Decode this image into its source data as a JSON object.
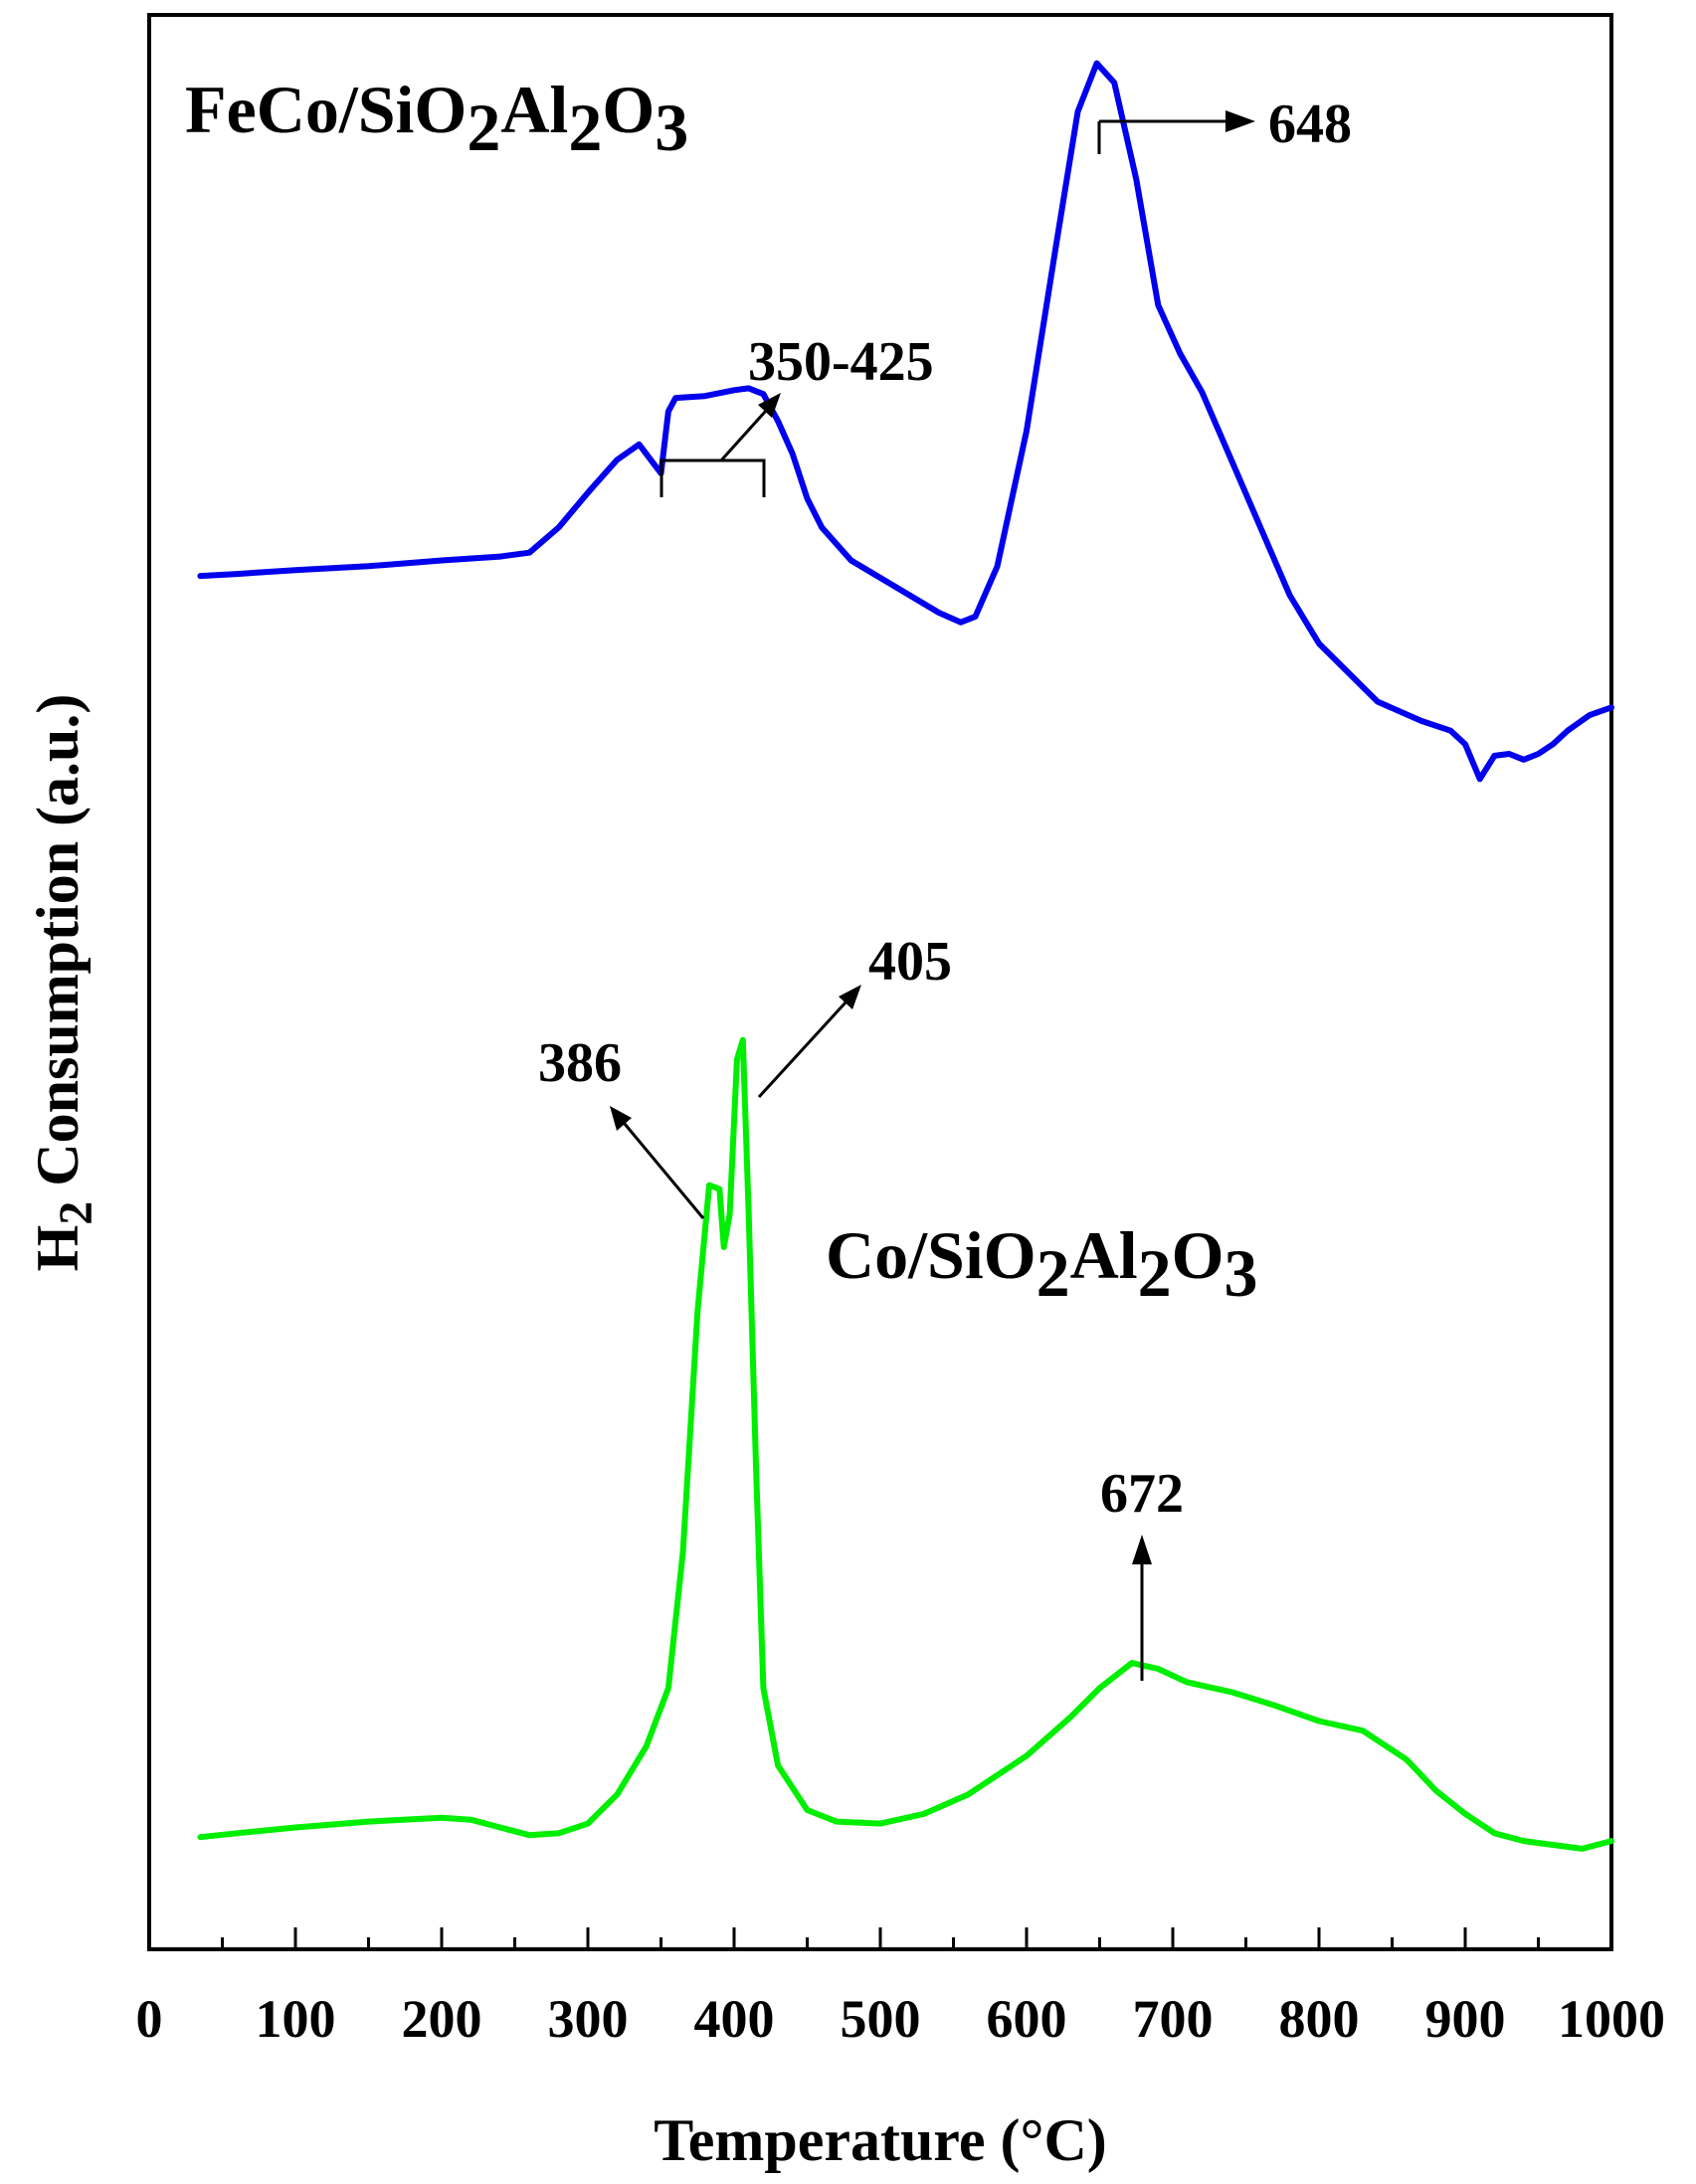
{
  "chart_data": {
    "type": "line",
    "xlabel": "Temperature (°C)",
    "ylabel_main": "H",
    "ylabel_sub": "2",
    "ylabel_rest": " Consumption (a.u.)",
    "xlim": [
      0,
      1000
    ],
    "ylim": [
      0,
      100
    ],
    "y_ticks_shown": false,
    "x_ticks": [
      0,
      100,
      200,
      300,
      400,
      500,
      600,
      700,
      800,
      900,
      1000
    ],
    "x_tick_labels": [
      "0",
      "100",
      "200",
      "300",
      "400",
      "500",
      "600",
      "700",
      "800",
      "900",
      "1000"
    ],
    "grid": false,
    "series": [
      {
        "label_parts": [
          {
            "t": "FeCo/SiO",
            "sub": false
          },
          {
            "t": "2",
            "sub": true
          },
          {
            "t": "Al",
            "sub": false
          },
          {
            "t": "2",
            "sub": true
          },
          {
            "t": "O",
            "sub": false
          },
          {
            "t": "3",
            "sub": true
          }
        ],
        "color": "#0000ee",
        "points": [
          [
            35,
            71.0
          ],
          [
            60,
            71.1
          ],
          [
            100,
            71.3
          ],
          [
            150,
            71.5
          ],
          [
            200,
            71.8
          ],
          [
            240,
            72.0
          ],
          [
            260,
            72.2
          ],
          [
            280,
            73.5
          ],
          [
            300,
            75.3
          ],
          [
            320,
            77.0
          ],
          [
            335,
            77.8
          ],
          [
            345,
            76.8
          ],
          [
            350,
            76.3
          ],
          [
            355,
            79.5
          ],
          [
            360,
            80.2
          ],
          [
            380,
            80.3
          ],
          [
            400,
            80.6
          ],
          [
            410,
            80.7
          ],
          [
            420,
            80.4
          ],
          [
            430,
            79.0
          ],
          [
            440,
            77.3
          ],
          [
            450,
            75.0
          ],
          [
            460,
            73.5
          ],
          [
            480,
            71.8
          ],
          [
            500,
            70.9
          ],
          [
            520,
            70.0
          ],
          [
            540,
            69.1
          ],
          [
            555,
            68.6
          ],
          [
            565,
            68.9
          ],
          [
            580,
            71.5
          ],
          [
            600,
            78.5
          ],
          [
            620,
            88.0
          ],
          [
            635,
            95.0
          ],
          [
            648,
            97.5
          ],
          [
            660,
            96.5
          ],
          [
            675,
            91.5
          ],
          [
            690,
            85.0
          ],
          [
            705,
            82.5
          ],
          [
            720,
            80.5
          ],
          [
            740,
            77.0
          ],
          [
            760,
            73.5
          ],
          [
            780,
            70.0
          ],
          [
            800,
            67.5
          ],
          [
            820,
            66.0
          ],
          [
            840,
            64.5
          ],
          [
            870,
            63.5
          ],
          [
            890,
            63.0
          ],
          [
            900,
            62.3
          ],
          [
            910,
            60.5
          ],
          [
            920,
            61.7
          ],
          [
            930,
            61.8
          ],
          [
            940,
            61.5
          ],
          [
            950,
            61.8
          ],
          [
            960,
            62.3
          ],
          [
            970,
            63.0
          ],
          [
            985,
            63.8
          ],
          [
            1000,
            64.2
          ]
        ]
      },
      {
        "label_parts": [
          {
            "t": "Co/SiO",
            "sub": false
          },
          {
            "t": "2",
            "sub": true
          },
          {
            "t": "Al",
            "sub": false
          },
          {
            "t": "2",
            "sub": true
          },
          {
            "t": "O",
            "sub": false
          },
          {
            "t": "3",
            "sub": true
          }
        ],
        "color": "#00ee00",
        "points": [
          [
            35,
            5.8
          ],
          [
            60,
            6.0
          ],
          [
            100,
            6.3
          ],
          [
            150,
            6.6
          ],
          [
            200,
            6.8
          ],
          [
            220,
            6.7
          ],
          [
            240,
            6.3
          ],
          [
            260,
            5.9
          ],
          [
            280,
            6.0
          ],
          [
            300,
            6.5
          ],
          [
            320,
            8.0
          ],
          [
            340,
            10.5
          ],
          [
            355,
            13.5
          ],
          [
            365,
            20.5
          ],
          [
            375,
            33.0
          ],
          [
            383,
            39.5
          ],
          [
            390,
            39.3
          ],
          [
            393,
            36.3
          ],
          [
            397,
            38.0
          ],
          [
            402,
            46.0
          ],
          [
            406,
            47.0
          ],
          [
            410,
            38.0
          ],
          [
            415,
            25.0
          ],
          [
            420,
            13.5
          ],
          [
            430,
            9.5
          ],
          [
            450,
            7.2
          ],
          [
            470,
            6.6
          ],
          [
            500,
            6.5
          ],
          [
            530,
            7.0
          ],
          [
            560,
            8.0
          ],
          [
            600,
            10.0
          ],
          [
            630,
            12.0
          ],
          [
            650,
            13.5
          ],
          [
            672,
            14.8
          ],
          [
            690,
            14.5
          ],
          [
            710,
            13.8
          ],
          [
            740,
            13.3
          ],
          [
            770,
            12.6
          ],
          [
            800,
            11.8
          ],
          [
            830,
            11.3
          ],
          [
            860,
            9.8
          ],
          [
            880,
            8.2
          ],
          [
            900,
            7.0
          ],
          [
            920,
            6.0
          ],
          [
            940,
            5.6
          ],
          [
            960,
            5.4
          ],
          [
            980,
            5.2
          ],
          [
            1000,
            5.6
          ]
        ]
      }
    ],
    "annotations": [
      {
        "text": "648"
      },
      {
        "text": "350-425"
      },
      {
        "text": "405"
      },
      {
        "text": "386"
      },
      {
        "text": "672"
      }
    ]
  }
}
